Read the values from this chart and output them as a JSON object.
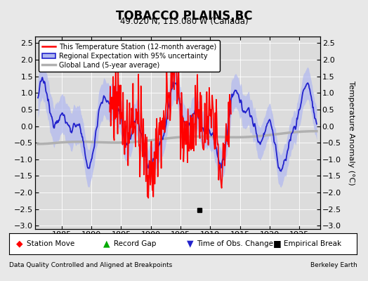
{
  "title": "TOBACCO PLAINS,BC",
  "subtitle": "49.020 N, 115.080 W (Canada)",
  "ylabel": "Temperature Anomaly (°C)",
  "xlim": [
    1880.5,
    1928.5
  ],
  "ylim": [
    -3.1,
    2.7
  ],
  "yticks": [
    -3,
    -2.5,
    -2,
    -1.5,
    -1,
    -0.5,
    0,
    0.5,
    1,
    1.5,
    2,
    2.5
  ],
  "xticks": [
    1885,
    1890,
    1895,
    1900,
    1905,
    1910,
    1915,
    1920,
    1925
  ],
  "bg_color": "#e8e8e8",
  "plot_bg": "#dcdcdc",
  "legend_entries": [
    "This Temperature Station (12-month average)",
    "Regional Expectation with 95% uncertainty",
    "Global Land (5-year average)"
  ],
  "footer_left": "Data Quality Controlled and Aligned at Breakpoints",
  "footer_right": "Berkeley Earth",
  "empirical_break_year": 1908.2,
  "station_start": 1893.0,
  "station_end": 1913.5
}
